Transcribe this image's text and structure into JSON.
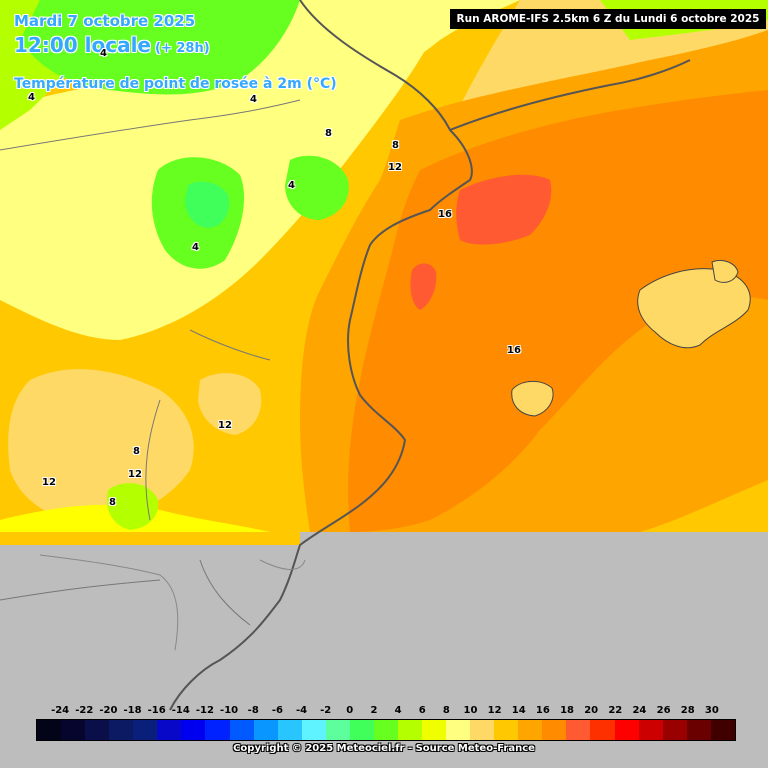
{
  "header": {
    "date": "Mardi 7 octobre 2025",
    "time": "12:00 locale",
    "lead": "(+ 28h)",
    "variable": "Température de point de rosée à 2m (°C)"
  },
  "run_info": "Run AROME-IFS 2.5km 6 Z du Lundi 6 octobre 2025",
  "contour_labels": [
    "4",
    "4",
    "4",
    "8",
    "8",
    "12",
    "4",
    "4",
    "16",
    "16",
    "12",
    "8",
    "12",
    "12",
    "8"
  ],
  "legend": {
    "ticks": [
      "-24",
      "-22",
      "-20",
      "-18",
      "-16",
      "-14",
      "-12",
      "-10",
      "-8",
      "-6",
      "-4",
      "-2",
      "0",
      "2",
      "4",
      "6",
      "8",
      "10",
      "12",
      "14",
      "16",
      "18",
      "20",
      "22",
      "24",
      "26",
      "28",
      "30"
    ],
    "colors": [
      "#040418",
      "#05052e",
      "#0a0f4a",
      "#0b1a63",
      "#0a1f7a",
      "#0808c8",
      "#0000f0",
      "#0022ff",
      "#005aff",
      "#0a96ff",
      "#29c5ff",
      "#5ff3ff",
      "#5cff9c",
      "#40ff5a",
      "#66ff20",
      "#b4ff00",
      "#f0ff00",
      "#ffff80",
      "#ffd966",
      "#ffc800",
      "#ffa500",
      "#ff8c00",
      "#ff5a32",
      "#ff3000",
      "#ff0000",
      "#cc0000",
      "#990000",
      "#6b0000",
      "#400000"
    ]
  },
  "copyright": "Copyright © 2025 Meteociel.fr - Source Meteo-France"
}
